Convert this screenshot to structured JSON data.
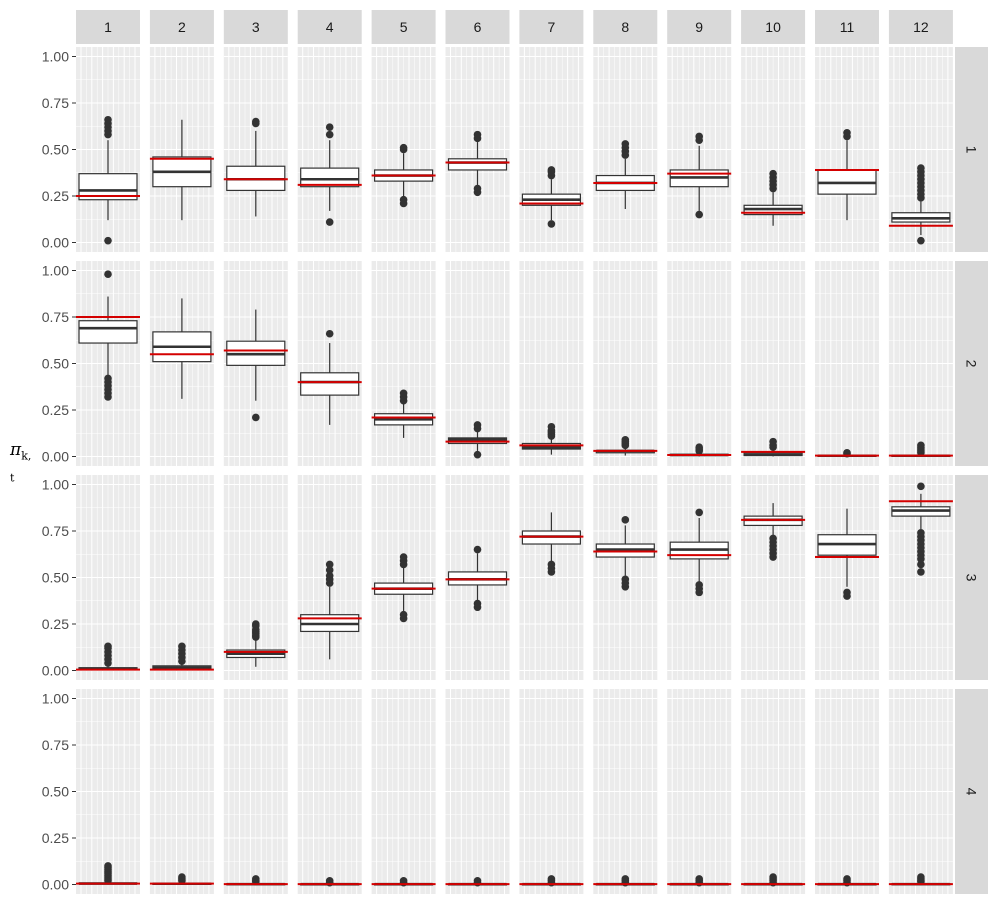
{
  "chart_data": {
    "type": "boxplot",
    "facet_layout": "grid",
    "column_facets": [
      "1",
      "2",
      "3",
      "4",
      "5",
      "6",
      "7",
      "8",
      "9",
      "10",
      "11",
      "12"
    ],
    "row_facets": [
      "1",
      "2",
      "3",
      "4"
    ],
    "ylabel_symbol": "π",
    "ylabel_subscript": "k, t",
    "ylim": [
      0,
      1
    ],
    "y_ticks": [
      0.0,
      0.25,
      0.5,
      0.75,
      1.0
    ],
    "y_tick_labels": [
      "0.00",
      "0.25",
      "0.50",
      "0.75",
      "1.00"
    ],
    "reference_line_color": "#d40000",
    "box_edge_color": "#333333",
    "panel_background": "#ebebeb",
    "strip_background": "#d9d9d9",
    "rows": [
      {
        "row": "1",
        "boxes": [
          {
            "col": "1",
            "q1": 0.23,
            "median": 0.28,
            "q3": 0.37,
            "wlo": 0.12,
            "whi": 0.55,
            "ref": 0.25,
            "outliers": [
              0.01,
              0.58,
              0.6,
              0.62,
              0.64,
              0.66
            ]
          },
          {
            "col": "2",
            "q1": 0.3,
            "median": 0.38,
            "q3": 0.46,
            "wlo": 0.12,
            "whi": 0.66,
            "ref": 0.45,
            "outliers": []
          },
          {
            "col": "3",
            "q1": 0.28,
            "median": 0.34,
            "q3": 0.41,
            "wlo": 0.14,
            "whi": 0.6,
            "ref": 0.34,
            "outliers": [
              0.64,
              0.65
            ]
          },
          {
            "col": "4",
            "q1": 0.3,
            "median": 0.34,
            "q3": 0.4,
            "wlo": 0.17,
            "whi": 0.55,
            "ref": 0.31,
            "outliers": [
              0.11,
              0.58,
              0.62
            ]
          },
          {
            "col": "5",
            "q1": 0.33,
            "median": 0.36,
            "q3": 0.39,
            "wlo": 0.24,
            "whi": 0.48,
            "ref": 0.36,
            "outliers": [
              0.21,
              0.23,
              0.5,
              0.51
            ]
          },
          {
            "col": "6",
            "q1": 0.39,
            "median": 0.43,
            "q3": 0.45,
            "wlo": 0.3,
            "whi": 0.54,
            "ref": 0.43,
            "outliers": [
              0.27,
              0.29,
              0.56,
              0.58
            ]
          },
          {
            "col": "7",
            "q1": 0.2,
            "median": 0.23,
            "q3": 0.26,
            "wlo": 0.12,
            "whi": 0.34,
            "ref": 0.21,
            "outliers": [
              0.1,
              0.36,
              0.38,
              0.39
            ]
          },
          {
            "col": "8",
            "q1": 0.28,
            "median": 0.32,
            "q3": 0.36,
            "wlo": 0.18,
            "whi": 0.45,
            "ref": 0.32,
            "outliers": [
              0.47,
              0.49,
              0.51,
              0.53
            ]
          },
          {
            "col": "9",
            "q1": 0.3,
            "median": 0.35,
            "q3": 0.39,
            "wlo": 0.17,
            "whi": 0.52,
            "ref": 0.37,
            "outliers": [
              0.15,
              0.55,
              0.57
            ]
          },
          {
            "col": "10",
            "q1": 0.15,
            "median": 0.18,
            "q3": 0.2,
            "wlo": 0.09,
            "whi": 0.27,
            "ref": 0.16,
            "outliers": [
              0.29,
              0.31,
              0.33,
              0.35,
              0.37
            ]
          },
          {
            "col": "11",
            "q1": 0.26,
            "median": 0.32,
            "q3": 0.39,
            "wlo": 0.12,
            "whi": 0.55,
            "ref": 0.39,
            "outliers": [
              0.57,
              0.59
            ]
          },
          {
            "col": "12",
            "q1": 0.11,
            "median": 0.13,
            "q3": 0.16,
            "wlo": 0.04,
            "whi": 0.22,
            "ref": 0.09,
            "outliers": [
              0.01,
              0.24,
              0.26,
              0.28,
              0.3,
              0.32,
              0.34,
              0.36,
              0.38,
              0.4
            ]
          }
        ]
      },
      {
        "row": "2",
        "boxes": [
          {
            "col": "1",
            "q1": 0.61,
            "median": 0.69,
            "q3": 0.73,
            "wlo": 0.43,
            "whi": 0.86,
            "ref": 0.75,
            "outliers": [
              0.32,
              0.34,
              0.36,
              0.38,
              0.4,
              0.42,
              0.98
            ]
          },
          {
            "col": "2",
            "q1": 0.51,
            "median": 0.59,
            "q3": 0.67,
            "wlo": 0.31,
            "whi": 0.85,
            "ref": 0.55,
            "outliers": []
          },
          {
            "col": "3",
            "q1": 0.49,
            "median": 0.55,
            "q3": 0.62,
            "wlo": 0.3,
            "whi": 0.79,
            "ref": 0.57,
            "outliers": [
              0.21
            ]
          },
          {
            "col": "4",
            "q1": 0.33,
            "median": 0.4,
            "q3": 0.45,
            "wlo": 0.17,
            "whi": 0.61,
            "ref": 0.4,
            "outliers": [
              0.66
            ]
          },
          {
            "col": "5",
            "q1": 0.17,
            "median": 0.2,
            "q3": 0.23,
            "wlo": 0.1,
            "whi": 0.29,
            "ref": 0.21,
            "outliers": [
              0.3,
              0.32,
              0.34
            ]
          },
          {
            "col": "6",
            "q1": 0.07,
            "median": 0.09,
            "q3": 0.1,
            "wlo": 0.03,
            "whi": 0.14,
            "ref": 0.08,
            "outliers": [
              0.01,
              0.15,
              0.17
            ]
          },
          {
            "col": "7",
            "q1": 0.04,
            "median": 0.05,
            "q3": 0.07,
            "wlo": 0.01,
            "whi": 0.1,
            "ref": 0.06,
            "outliers": [
              0.11,
              0.12,
              0.13,
              0.14,
              0.16
            ]
          },
          {
            "col": "8",
            "q1": 0.02,
            "median": 0.03,
            "q3": 0.03,
            "wlo": 0.005,
            "whi": 0.05,
            "ref": 0.03,
            "outliers": [
              0.06,
              0.07,
              0.08,
              0.09
            ]
          },
          {
            "col": "9",
            "q1": 0.005,
            "median": 0.008,
            "q3": 0.012,
            "wlo": 0.0,
            "whi": 0.025,
            "ref": 0.008,
            "outliers": [
              0.03,
              0.04,
              0.05
            ]
          },
          {
            "col": "10",
            "q1": 0.005,
            "median": 0.01,
            "q3": 0.02,
            "wlo": 0.0,
            "whi": 0.04,
            "ref": 0.025,
            "outliers": [
              0.05,
              0.06,
              0.08
            ]
          },
          {
            "col": "11",
            "q1": 0.002,
            "median": 0.004,
            "q3": 0.006,
            "wlo": 0.0,
            "whi": 0.01,
            "ref": 0.005,
            "outliers": [
              0.015,
              0.02
            ]
          },
          {
            "col": "12",
            "q1": 0.002,
            "median": 0.004,
            "q3": 0.006,
            "wlo": 0.0,
            "whi": 0.012,
            "ref": 0.005,
            "outliers": [
              0.02,
              0.03,
              0.04,
              0.05,
              0.06
            ]
          }
        ]
      },
      {
        "row": "3",
        "boxes": [
          {
            "col": "1",
            "q1": 0.005,
            "median": 0.01,
            "q3": 0.015,
            "wlo": 0.0,
            "whi": 0.03,
            "ref": 0.005,
            "outliers": [
              0.04,
              0.06,
              0.08,
              0.1,
              0.12,
              0.13
            ]
          },
          {
            "col": "2",
            "q1": 0.01,
            "median": 0.015,
            "q3": 0.025,
            "wlo": 0.0,
            "whi": 0.04,
            "ref": 0.005,
            "outliers": [
              0.05,
              0.07,
              0.09,
              0.11,
              0.13
            ]
          },
          {
            "col": "3",
            "q1": 0.07,
            "median": 0.09,
            "q3": 0.11,
            "wlo": 0.02,
            "whi": 0.17,
            "ref": 0.1,
            "outliers": [
              0.18,
              0.19,
              0.2,
              0.21,
              0.22,
              0.24,
              0.25
            ]
          },
          {
            "col": "4",
            "q1": 0.21,
            "median": 0.25,
            "q3": 0.3,
            "wlo": 0.06,
            "whi": 0.45,
            "ref": 0.28,
            "outliers": [
              0.47,
              0.49,
              0.51,
              0.54,
              0.57
            ]
          },
          {
            "col": "5",
            "q1": 0.41,
            "median": 0.44,
            "q3": 0.47,
            "wlo": 0.32,
            "whi": 0.56,
            "ref": 0.44,
            "outliers": [
              0.28,
              0.3,
              0.57,
              0.59,
              0.61
            ]
          },
          {
            "col": "6",
            "q1": 0.46,
            "median": 0.49,
            "q3": 0.53,
            "wlo": 0.37,
            "whi": 0.63,
            "ref": 0.49,
            "outliers": [
              0.34,
              0.36,
              0.65
            ]
          },
          {
            "col": "7",
            "q1": 0.68,
            "median": 0.72,
            "q3": 0.75,
            "wlo": 0.58,
            "whi": 0.85,
            "ref": 0.72,
            "outliers": [
              0.53,
              0.55,
              0.57
            ]
          },
          {
            "col": "8",
            "q1": 0.61,
            "median": 0.65,
            "q3": 0.68,
            "wlo": 0.51,
            "whi": 0.78,
            "ref": 0.64,
            "outliers": [
              0.45,
              0.47,
              0.49,
              0.81
            ]
          },
          {
            "col": "9",
            "q1": 0.6,
            "median": 0.65,
            "q3": 0.69,
            "wlo": 0.47,
            "whi": 0.82,
            "ref": 0.62,
            "outliers": [
              0.42,
              0.44,
              0.46,
              0.85
            ]
          },
          {
            "col": "10",
            "q1": 0.78,
            "median": 0.81,
            "q3": 0.83,
            "wlo": 0.72,
            "whi": 0.9,
            "ref": 0.81,
            "outliers": [
              0.61,
              0.63,
              0.65,
              0.67,
              0.69,
              0.71
            ]
          },
          {
            "col": "11",
            "q1": 0.62,
            "median": 0.68,
            "q3": 0.73,
            "wlo": 0.45,
            "whi": 0.87,
            "ref": 0.61,
            "outliers": [
              0.4,
              0.42
            ]
          },
          {
            "col": "12",
            "q1": 0.83,
            "median": 0.86,
            "q3": 0.88,
            "wlo": 0.76,
            "whi": 0.95,
            "ref": 0.91,
            "outliers": [
              0.53,
              0.57,
              0.6,
              0.62,
              0.64,
              0.66,
              0.68,
              0.7,
              0.72,
              0.74,
              0.99
            ]
          }
        ]
      },
      {
        "row": "4",
        "boxes": [
          {
            "col": "1",
            "q1": 0.003,
            "median": 0.005,
            "q3": 0.008,
            "wlo": 0.0,
            "whi": 0.015,
            "ref": 0.005,
            "outliers": [
              0.02,
              0.03,
              0.04,
              0.05,
              0.06,
              0.07,
              0.08,
              0.09,
              0.1
            ]
          },
          {
            "col": "2",
            "q1": 0.002,
            "median": 0.004,
            "q3": 0.006,
            "wlo": 0.0,
            "whi": 0.012,
            "ref": 0.005,
            "outliers": [
              0.02,
              0.03,
              0.04
            ]
          },
          {
            "col": "3",
            "q1": 0.001,
            "median": 0.002,
            "q3": 0.004,
            "wlo": 0.0,
            "whi": 0.008,
            "ref": 0.002,
            "outliers": [
              0.015,
              0.02,
              0.03
            ]
          },
          {
            "col": "4",
            "q1": 0.001,
            "median": 0.002,
            "q3": 0.003,
            "wlo": 0.0,
            "whi": 0.006,
            "ref": 0.002,
            "outliers": [
              0.01,
              0.02
            ]
          },
          {
            "col": "5",
            "q1": 0.001,
            "median": 0.002,
            "q3": 0.003,
            "wlo": 0.0,
            "whi": 0.006,
            "ref": 0.002,
            "outliers": [
              0.01,
              0.02
            ]
          },
          {
            "col": "6",
            "q1": 0.001,
            "median": 0.002,
            "q3": 0.003,
            "wlo": 0.0,
            "whi": 0.006,
            "ref": 0.002,
            "outliers": [
              0.01,
              0.02
            ]
          },
          {
            "col": "7",
            "q1": 0.001,
            "median": 0.002,
            "q3": 0.003,
            "wlo": 0.0,
            "whi": 0.006,
            "ref": 0.002,
            "outliers": [
              0.01,
              0.02,
              0.03
            ]
          },
          {
            "col": "8",
            "q1": 0.001,
            "median": 0.002,
            "q3": 0.003,
            "wlo": 0.0,
            "whi": 0.006,
            "ref": 0.002,
            "outliers": [
              0.01,
              0.02,
              0.03
            ]
          },
          {
            "col": "9",
            "q1": 0.001,
            "median": 0.002,
            "q3": 0.003,
            "wlo": 0.0,
            "whi": 0.006,
            "ref": 0.002,
            "outliers": [
              0.01,
              0.02,
              0.03
            ]
          },
          {
            "col": "10",
            "q1": 0.001,
            "median": 0.002,
            "q3": 0.003,
            "wlo": 0.0,
            "whi": 0.006,
            "ref": 0.002,
            "outliers": [
              0.01,
              0.02,
              0.03,
              0.04
            ]
          },
          {
            "col": "11",
            "q1": 0.001,
            "median": 0.002,
            "q3": 0.003,
            "wlo": 0.0,
            "whi": 0.006,
            "ref": 0.002,
            "outliers": [
              0.01,
              0.02,
              0.03
            ]
          },
          {
            "col": "12",
            "q1": 0.001,
            "median": 0.002,
            "q3": 0.004,
            "wlo": 0.0,
            "whi": 0.008,
            "ref": 0.002,
            "outliers": [
              0.015,
              0.02,
              0.03,
              0.04
            ]
          }
        ]
      }
    ]
  }
}
